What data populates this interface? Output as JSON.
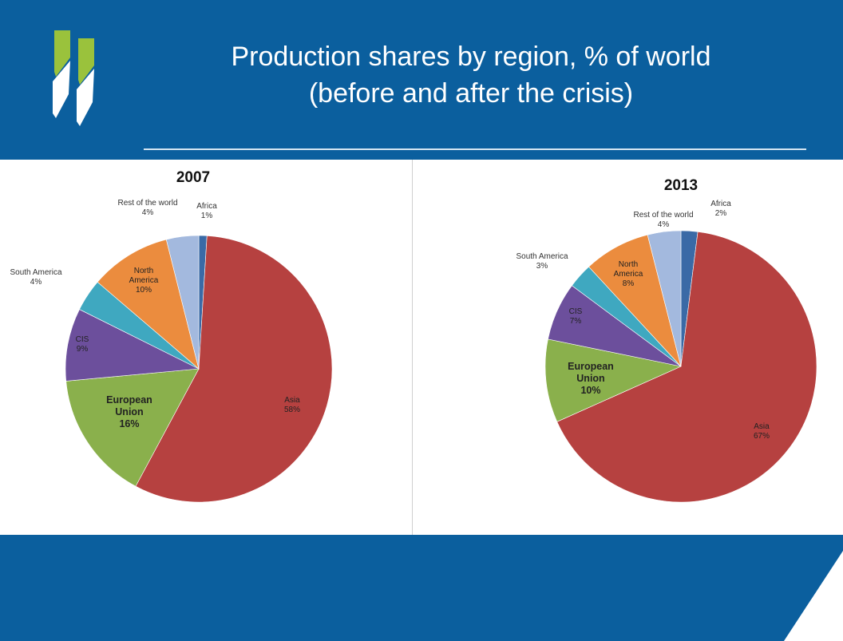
{
  "header": {
    "title_line1": "Production shares by region, % of world",
    "title_line2": "(before and after the crisis)"
  },
  "colors": {
    "header_bg": "#0b5f9e",
    "logo_green": "#9ac23c",
    "Africa": "#3a6aa6",
    "Asia": "#b64140",
    "European Union": "#8ab04c",
    "CIS": "#6c4f9c",
    "South America": "#3fa8c0",
    "North America": "#eb8c3e",
    "Rest of the world": "#a3b9de"
  },
  "chart_data": [
    {
      "type": "pie",
      "title": "2007",
      "categories": [
        "Africa",
        "Asia",
        "European Union",
        "CIS",
        "South America",
        "North America",
        "Rest of the world"
      ],
      "values": [
        1,
        58,
        16,
        9,
        4,
        10,
        4
      ],
      "labels": [
        {
          "name": "Africa",
          "value": "1%"
        },
        {
          "name": "Asia",
          "value": "58%"
        },
        {
          "name": "European Union",
          "value": "16%"
        },
        {
          "name": "CIS",
          "value": "9%"
        },
        {
          "name": "South America",
          "value": "4%"
        },
        {
          "name": "North America",
          "value": "10%"
        },
        {
          "name": "Rest of the world",
          "value": "4%"
        }
      ]
    },
    {
      "type": "pie",
      "title": "2013",
      "categories": [
        "Africa",
        "Asia",
        "European Union",
        "CIS",
        "South America",
        "North America",
        "Rest of the world"
      ],
      "values": [
        2,
        67,
        10,
        7,
        3,
        8,
        4
      ],
      "labels": [
        {
          "name": "Africa",
          "value": "2%"
        },
        {
          "name": "Asia",
          "value": "67%"
        },
        {
          "name": "European Union",
          "value": "10%"
        },
        {
          "name": "CIS",
          "value": "7%"
        },
        {
          "name": "South America",
          "value": "3%"
        },
        {
          "name": "North America",
          "value": "8%"
        },
        {
          "name": "Rest of the world",
          "value": "4%"
        }
      ]
    }
  ]
}
